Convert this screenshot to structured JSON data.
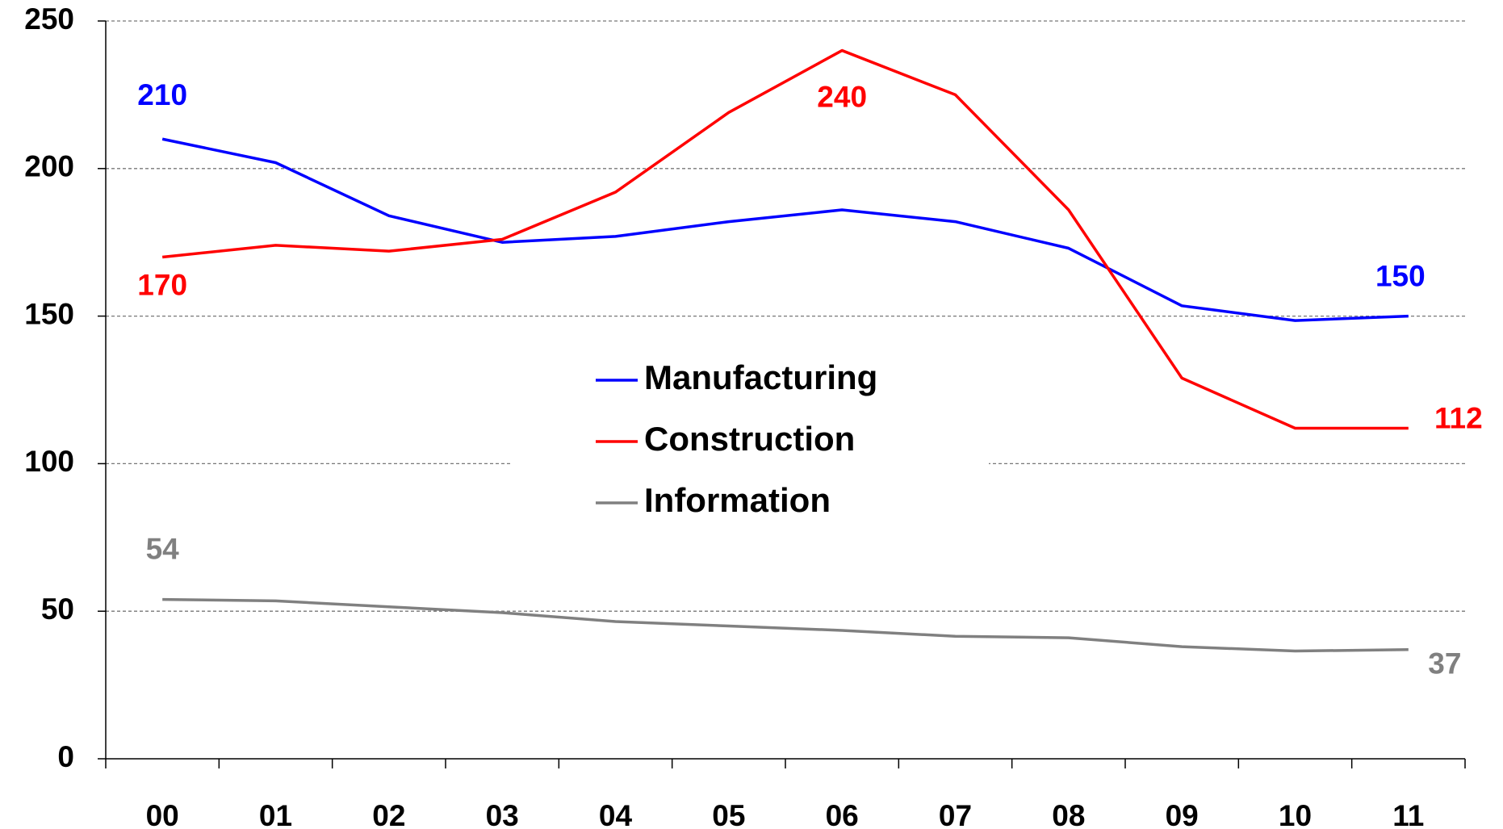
{
  "chart_data": {
    "type": "line",
    "categories": [
      "00",
      "01",
      "02",
      "03",
      "04",
      "05",
      "06",
      "07",
      "08",
      "09",
      "10",
      "11"
    ],
    "series": [
      {
        "name": "Manufacturing",
        "color": "#0000ff",
        "values": [
          210,
          202,
          184,
          175,
          177,
          182,
          186,
          182,
          173,
          153.5,
          148.5,
          150
        ],
        "value_labels": [
          "210",
          null,
          null,
          null,
          null,
          null,
          null,
          null,
          null,
          null,
          null,
          "150"
        ]
      },
      {
        "name": "Construction",
        "color": "#ff0000",
        "values": [
          170,
          174,
          172,
          176,
          192,
          219,
          240,
          225,
          186,
          129,
          112,
          112
        ],
        "value_labels": [
          "170",
          null,
          null,
          null,
          null,
          null,
          "240",
          null,
          null,
          null,
          null,
          "112"
        ]
      },
      {
        "name": "Information",
        "color": "#808080",
        "values": [
          54,
          53.5,
          51.5,
          49.5,
          46.5,
          45,
          43.5,
          41.5,
          41,
          38,
          36.5,
          37
        ],
        "value_labels": [
          "54",
          null,
          null,
          null,
          null,
          null,
          null,
          null,
          null,
          null,
          null,
          "37"
        ]
      }
    ],
    "ylim": [
      0,
      250
    ],
    "yticks": [
      0,
      50,
      100,
      150,
      200,
      250
    ],
    "grid": true
  }
}
